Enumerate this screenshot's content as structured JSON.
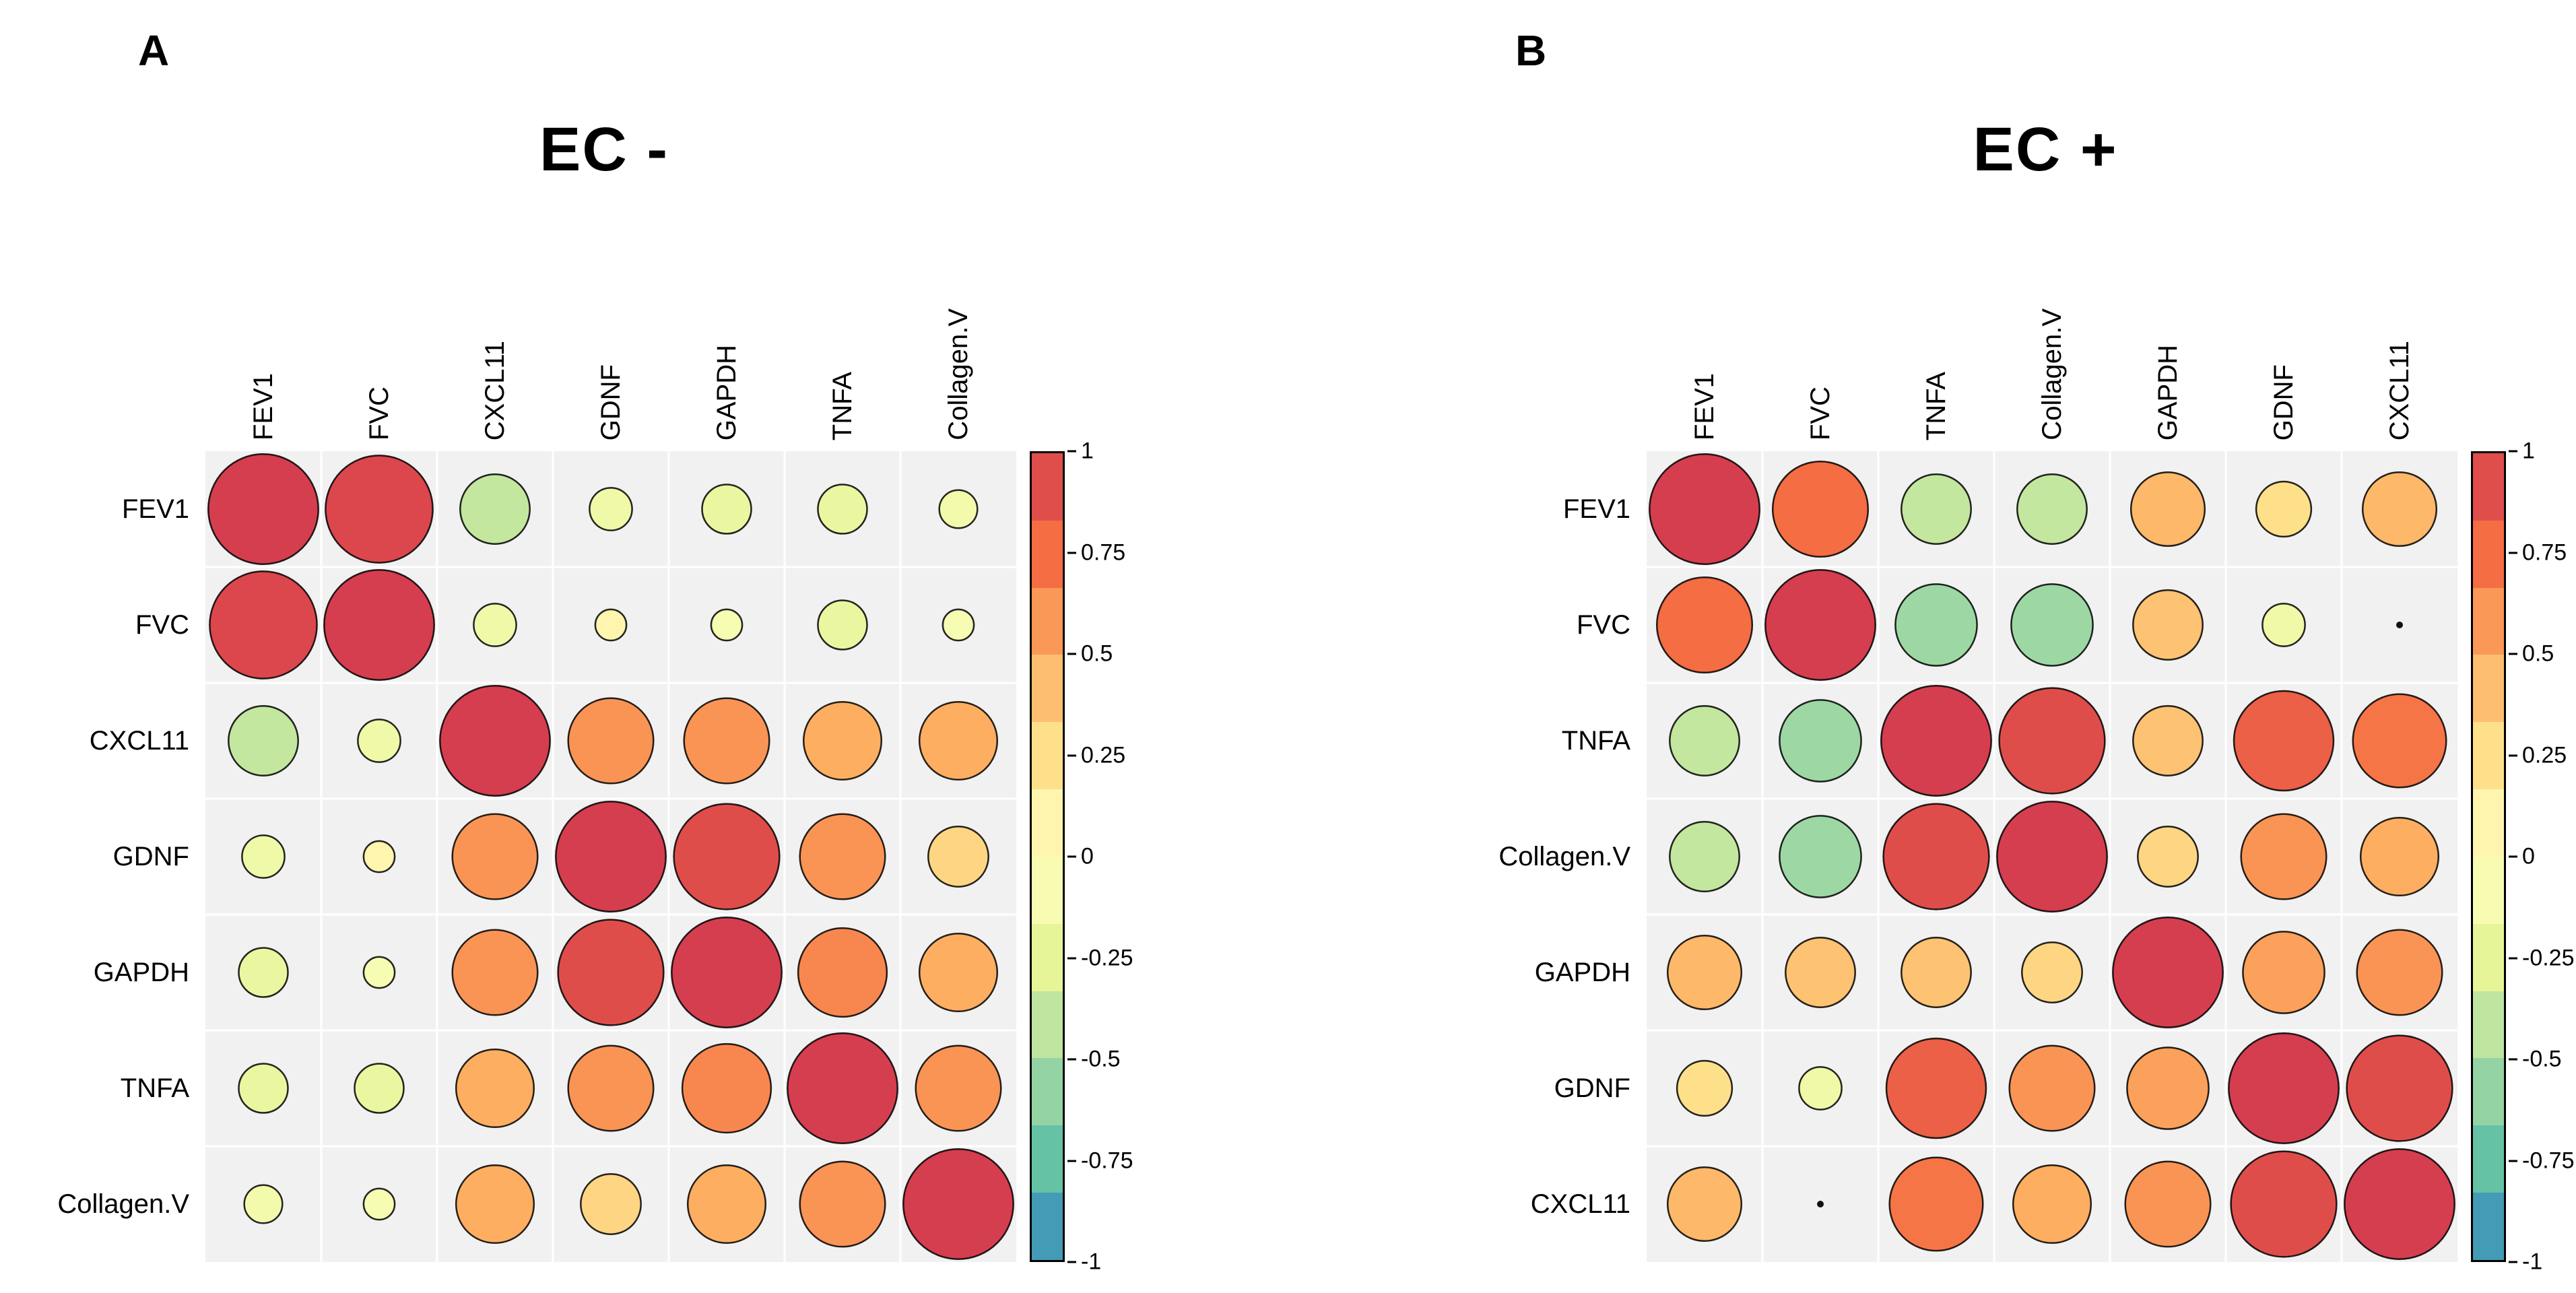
{
  "chart_data": [
    {
      "type": "heatmap",
      "subtype": "correlogram-circles",
      "panel_letter": "A",
      "title": "EC -",
      "labels": [
        "FEV1",
        "FVC",
        "CXCL11",
        "GDNF",
        "GAPDH",
        "TNFA",
        "Collagen.V"
      ],
      "matrix": [
        [
          1.0,
          0.95,
          -0.4,
          -0.15,
          -0.2,
          -0.2,
          -0.12
        ],
        [
          0.95,
          1.0,
          -0.15,
          0.08,
          -0.08,
          -0.2,
          -0.08
        ],
        [
          -0.4,
          -0.15,
          1.0,
          0.6,
          0.6,
          0.5,
          0.5
        ],
        [
          -0.15,
          0.08,
          0.6,
          1.0,
          0.92,
          0.6,
          0.3
        ],
        [
          -0.2,
          -0.08,
          0.6,
          0.92,
          1.0,
          0.65,
          0.5
        ],
        [
          -0.2,
          -0.2,
          0.5,
          0.6,
          0.65,
          1.0,
          0.6
        ],
        [
          -0.12,
          -0.08,
          0.5,
          0.3,
          0.5,
          0.6,
          1.0
        ]
      ],
      "value_range": [
        -1,
        1
      ],
      "legend_position": "right",
      "grid": true
    },
    {
      "type": "heatmap",
      "subtype": "correlogram-circles",
      "panel_letter": "B",
      "title": "EC +",
      "labels": [
        "FEV1",
        "FVC",
        "TNFA",
        "Collagen.V",
        "GAPDH",
        "GDNF",
        "CXCL11"
      ],
      "matrix": [
        [
          1.0,
          0.75,
          -0.4,
          -0.4,
          0.45,
          0.25,
          0.45
        ],
        [
          0.75,
          1.0,
          -0.55,
          -0.55,
          0.4,
          -0.15,
          0.01
        ],
        [
          -0.4,
          -0.55,
          1.0,
          0.92,
          0.4,
          0.82,
          0.72
        ],
        [
          -0.4,
          -0.55,
          0.92,
          1.0,
          0.3,
          0.6,
          0.5
        ],
        [
          0.45,
          0.4,
          0.4,
          0.3,
          1.0,
          0.55,
          0.6
        ],
        [
          0.25,
          -0.15,
          0.82,
          0.6,
          0.55,
          1.0,
          0.92
        ],
        [
          0.45,
          0.01,
          0.72,
          0.5,
          0.6,
          0.92,
          1.0
        ]
      ],
      "value_range": [
        -1,
        1
      ],
      "legend_position": "right",
      "grid": true
    }
  ],
  "colorbar": {
    "tick_values": [
      1,
      0.75,
      0.5,
      0.25,
      0,
      -0.25,
      -0.5,
      -0.75,
      -1
    ],
    "tick_labels": [
      "1",
      "0.75",
      "0.5",
      "0.25",
      "0",
      "-0.25",
      "-0.5",
      "-0.75",
      "-1"
    ],
    "min": -1,
    "max": 1,
    "segments": 12,
    "palette_stops_low_to_high": [
      "#3288bd",
      "#66c2a5",
      "#abdda4",
      "#e6f598",
      "#ffffbf",
      "#fee08b",
      "#fdae61",
      "#f46d43",
      "#d53e4f"
    ]
  },
  "style": {
    "matrix_background": "#f1f1f1",
    "gridline_color": "#ffffff",
    "circle_outline": "#000000"
  }
}
